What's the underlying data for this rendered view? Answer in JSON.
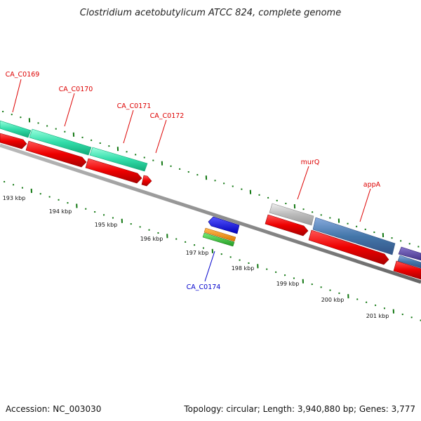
{
  "title": "Clostridium acetobutylicum ATCC 824, complete genome",
  "footer": {
    "accession": "Accession: NC_003030",
    "summary": "Topology: circular; Length: 3,940,880 bp; Genes: 3,777"
  },
  "ruler": {
    "unit": "kbp",
    "labels": [
      "193 kbp",
      "194 kbp",
      "195 kbp",
      "196 kbp",
      "197 kbp",
      "198 kbp",
      "199 kbp",
      "200 kbp",
      "201 kbp"
    ]
  },
  "gene_labels": [
    {
      "name": "CA_C0169",
      "color": "#dd0000"
    },
    {
      "name": "CA_C0170",
      "color": "#dd0000"
    },
    {
      "name": "CA_C0171",
      "color": "#dd0000"
    },
    {
      "name": "CA_C0172",
      "color": "#dd0000"
    },
    {
      "name": "murQ",
      "color": "#dd0000"
    },
    {
      "name": "appA",
      "color": "#dd0000"
    },
    {
      "name": "CA_C0174",
      "color": "#0000cc"
    }
  ],
  "colors": {
    "gene_red": "#ee0000",
    "feature_green": "#33ddaa",
    "feature_blue": "#4477aa",
    "feature_gray": "#bbbbbb",
    "backbone": "#888888",
    "tick": "#117711",
    "reverse_blue": "#0000ee",
    "orange": "#ff8800",
    "green": "#33bb33"
  }
}
